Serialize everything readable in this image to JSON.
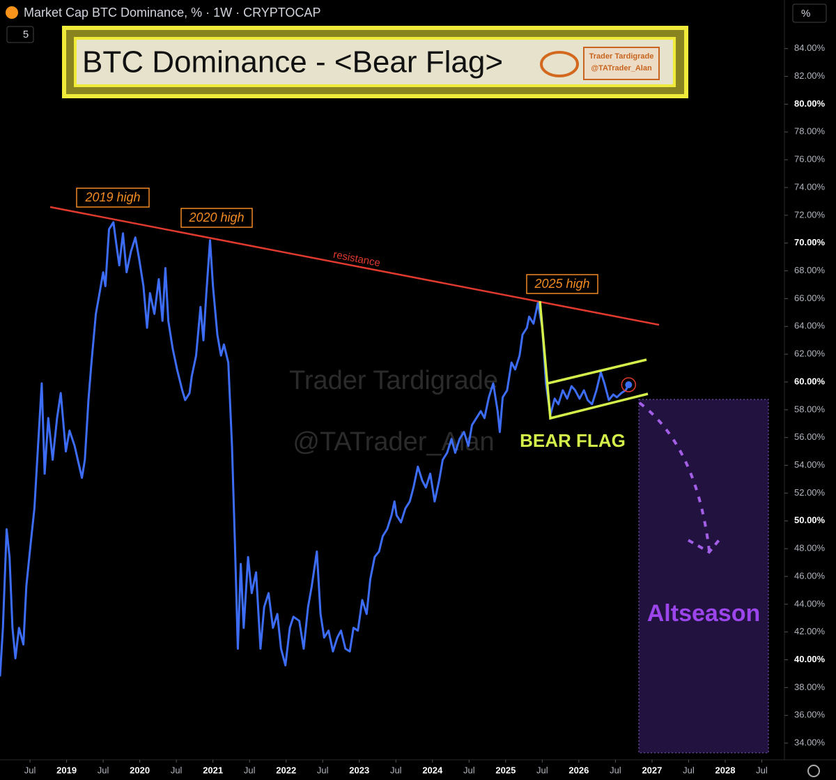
{
  "chart_data": {
    "type": "line",
    "title": "BTC Dominance - <Bear Flag>",
    "subtitle": "Market Cap BTC Dominance, % · 1W · CRYPTOCAP",
    "y_axis_label": "%",
    "badge": "5",
    "logo": [
      "Trader Tardigrade",
      "@TATrader_Alan"
    ],
    "watermark": [
      "Trader Tardigrade",
      "@TATrader_Alan"
    ],
    "annotations": {
      "high_2019": "2019 high",
      "high_2020": "2020 high",
      "high_2025": "2025 high",
      "resistance": "resistance",
      "pattern": "BEAR FLAG",
      "target": "Altseason"
    },
    "xlim": [
      2018.09,
      2028.8
    ],
    "ylim": [
      32.8,
      87.5
    ],
    "xticks": [
      {
        "value": 2018.5,
        "label": "Jul"
      },
      2019,
      {
        "value": 2019.5,
        "label": "Jul"
      },
      2020,
      {
        "value": 2020.5,
        "label": "Jul"
      },
      2021,
      {
        "value": 2021.5,
        "label": "Jul"
      },
      2022,
      {
        "value": 2022.5,
        "label": "Jul"
      },
      2023,
      {
        "value": 2023.5,
        "label": "Jul"
      },
      2024,
      {
        "value": 2024.5,
        "label": "Jul"
      },
      2025,
      {
        "value": 2025.5,
        "label": "Jul"
      },
      2026,
      {
        "value": 2026.5,
        "label": "Jul"
      },
      2027,
      {
        "value": 2027.5,
        "label": "Jul"
      },
      2028,
      {
        "value": 2028.5,
        "label": "Jul"
      }
    ],
    "yticks": [
      {
        "value": 34,
        "label": "34.00%"
      },
      {
        "value": 36,
        "label": "36.00%"
      },
      {
        "value": 38,
        "label": "38.00%"
      },
      {
        "value": 40,
        "label": "40.00%"
      },
      {
        "value": 42,
        "label": "42.00%"
      },
      {
        "value": 44,
        "label": "44.00%"
      },
      {
        "value": 46,
        "label": "46.00%"
      },
      {
        "value": 48,
        "label": "48.00%"
      },
      {
        "value": 50,
        "label": "50.00%"
      },
      {
        "value": 52,
        "label": "52.00%"
      },
      {
        "value": 54,
        "label": "54.00%"
      },
      {
        "value": 56,
        "label": "56.00%"
      },
      {
        "value": 58,
        "label": "58.00%"
      },
      {
        "value": 60,
        "label": "60.00%"
      },
      {
        "value": 62,
        "label": "62.00%"
      },
      {
        "value": 64,
        "label": "64.00%"
      },
      {
        "value": 66,
        "label": "66.00%"
      },
      {
        "value": 68,
        "label": "68.00%"
      },
      {
        "value": 70,
        "label": "70.00%"
      },
      {
        "value": 72,
        "label": "72.00%"
      },
      {
        "value": 74,
        "label": "74.00%"
      },
      {
        "value": 76,
        "label": "76.00%"
      },
      {
        "value": 78,
        "label": "78.00%"
      },
      {
        "value": 80,
        "label": "80.00%"
      },
      {
        "value": 82,
        "label": "82.00%"
      },
      {
        "value": 84,
        "label": "84.00%"
      }
    ],
    "color": "#3d6cf5",
    "x": [
      2018.09,
      2018.13,
      2018.18,
      2018.22,
      2018.26,
      2018.3,
      2018.35,
      2018.41,
      2018.45,
      2018.51,
      2018.56,
      2018.61,
      2018.66,
      2018.7,
      2018.75,
      2018.81,
      2018.87,
      2018.92,
      2018.99,
      2019.04,
      2019.11,
      2019.21,
      2019.25,
      2019.3,
      2019.34,
      2019.4,
      2019.45,
      2019.5,
      2019.53,
      2019.58,
      2019.64,
      2019.68,
      2019.72,
      2019.77,
      2019.82,
      2019.88,
      2019.94,
      2019.99,
      2020.05,
      2020.1,
      2020.14,
      2020.2,
      2020.26,
      2020.31,
      2020.35,
      2020.39,
      2020.45,
      2020.51,
      2020.58,
      2020.62,
      2020.68,
      2020.71,
      2020.77,
      2020.83,
      2020.87,
      2020.91,
      2020.96,
      2021.0,
      2021.06,
      2021.11,
      2021.15,
      2021.21,
      2021.26,
      2021.3,
      2021.34,
      2021.38,
      2021.42,
      2021.48,
      2021.53,
      2021.59,
      2021.65,
      2021.7,
      2021.76,
      2021.82,
      2021.88,
      2021.93,
      2021.99,
      2022.05,
      2022.1,
      2022.18,
      2022.24,
      2022.3,
      2022.35,
      2022.42,
      2022.47,
      2022.52,
      2022.58,
      2022.64,
      2022.7,
      2022.75,
      2022.81,
      2022.87,
      2022.92,
      2022.98,
      2023.04,
      2023.1,
      2023.15,
      2023.21,
      2023.27,
      2023.32,
      2023.38,
      2023.44,
      2023.48,
      2023.51,
      2023.57,
      2023.63,
      2023.69,
      2023.74,
      2023.8,
      2023.86,
      2023.91,
      2023.97,
      2024.03,
      2024.09,
      2024.14,
      2024.2,
      2024.26,
      2024.31,
      2024.37,
      2024.43,
      2024.49,
      2024.54,
      2024.6,
      2024.66,
      2024.71,
      2024.77,
      2024.83,
      2024.89,
      2024.92,
      2024.96,
      2025.02,
      2025.08,
      2025.13,
      2025.19,
      2025.23,
      2025.29,
      2025.32,
      2025.38,
      2025.44,
      2025.5,
      2025.55,
      2025.61,
      2025.67,
      2025.72,
      2025.78,
      2025.84,
      2025.9,
      2025.95,
      2026.01,
      2026.07,
      2026.12,
      2026.18,
      2026.24,
      2026.3,
      2026.35,
      2026.41,
      2026.47,
      2026.52,
      2026.58,
      2026.64,
      2026.68
    ],
    "values": [
      38.8,
      42.3,
      49.4,
      47.4,
      42.3,
      40.1,
      42.3,
      41.1,
      45.3,
      48.4,
      50.9,
      55.4,
      59.9,
      53.4,
      57.4,
      54.4,
      57.4,
      59.2,
      55.0,
      56.5,
      55.4,
      53.1,
      54.4,
      58.8,
      61.4,
      64.9,
      66.4,
      67.9,
      66.9,
      71.0,
      71.5,
      69.9,
      68.4,
      70.7,
      67.9,
      69.4,
      70.4,
      68.9,
      66.9,
      63.9,
      66.4,
      64.9,
      67.4,
      64.4,
      68.2,
      64.4,
      62.4,
      60.9,
      59.4,
      58.7,
      59.2,
      60.4,
      61.9,
      65.4,
      63.0,
      66.4,
      70.2,
      66.9,
      63.4,
      61.9,
      62.7,
      61.4,
      55.4,
      48.4,
      40.8,
      46.9,
      42.3,
      47.4,
      44.8,
      46.3,
      40.8,
      43.8,
      44.8,
      42.3,
      43.3,
      40.8,
      39.6,
      42.3,
      43.1,
      42.8,
      40.8,
      43.8,
      45.3,
      47.8,
      43.3,
      41.6,
      42.1,
      40.6,
      41.6,
      42.1,
      40.8,
      40.6,
      42.3,
      42.1,
      44.3,
      43.3,
      45.8,
      47.4,
      47.8,
      48.9,
      49.4,
      50.4,
      51.4,
      50.4,
      49.9,
      50.9,
      51.4,
      52.4,
      53.9,
      52.9,
      52.4,
      53.4,
      51.4,
      52.9,
      54.4,
      54.9,
      55.9,
      54.9,
      55.9,
      56.4,
      55.4,
      56.9,
      57.4,
      57.9,
      57.4,
      58.9,
      59.9,
      57.9,
      56.4,
      58.9,
      59.4,
      61.4,
      60.9,
      61.9,
      63.4,
      63.9,
      64.7,
      64.2,
      65.7,
      63.9,
      59.9,
      57.6,
      58.8,
      58.4,
      59.4,
      58.8,
      59.7,
      59.4,
      58.8,
      59.4,
      58.7,
      58.4,
      59.4,
      60.7,
      59.9,
      58.7,
      59.1,
      58.9,
      59.2,
      59.4,
      59.8
    ]
  }
}
